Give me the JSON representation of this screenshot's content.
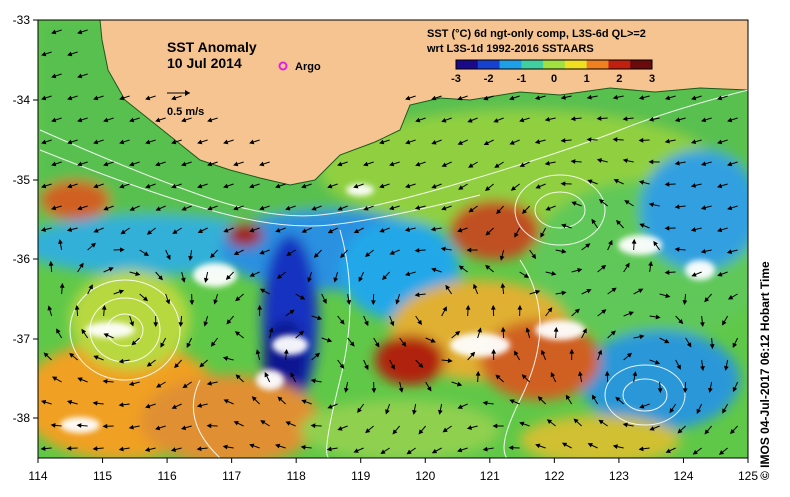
{
  "map": {
    "title": "SST Anomaly",
    "date": "10 Jul 2014",
    "argo_label": "Argo",
    "scale_label": "0.5 m/s",
    "product_line1": "SST (°C) 6d ngt-only comp, L3S-6d QL>=2",
    "product_line2": "wrt L3S-1d 1992-2016 SSTAARS",
    "credit": "© IMOS 04-Jul-2017 06:12 Hobart Time",
    "colorbar": {
      "ticks": [
        "-3",
        "-2",
        "-1",
        "0",
        "1",
        "2",
        "3"
      ],
      "stops": [
        "#1a0a8a",
        "#1640d0",
        "#1ea0e8",
        "#40d0a0",
        "#a0e040",
        "#f0e020",
        "#f08020",
        "#c02010",
        "#6a0a0a"
      ]
    },
    "x_ticks": [
      "114",
      "115",
      "116",
      "117",
      "118",
      "119",
      "120",
      "121",
      "122",
      "123",
      "124",
      "125"
    ],
    "y_ticks": [
      "-33",
      "-34",
      "-35",
      "-36",
      "-37",
      "-38"
    ],
    "land_color": "#f5c491",
    "argo_color": "#e020e0"
  }
}
